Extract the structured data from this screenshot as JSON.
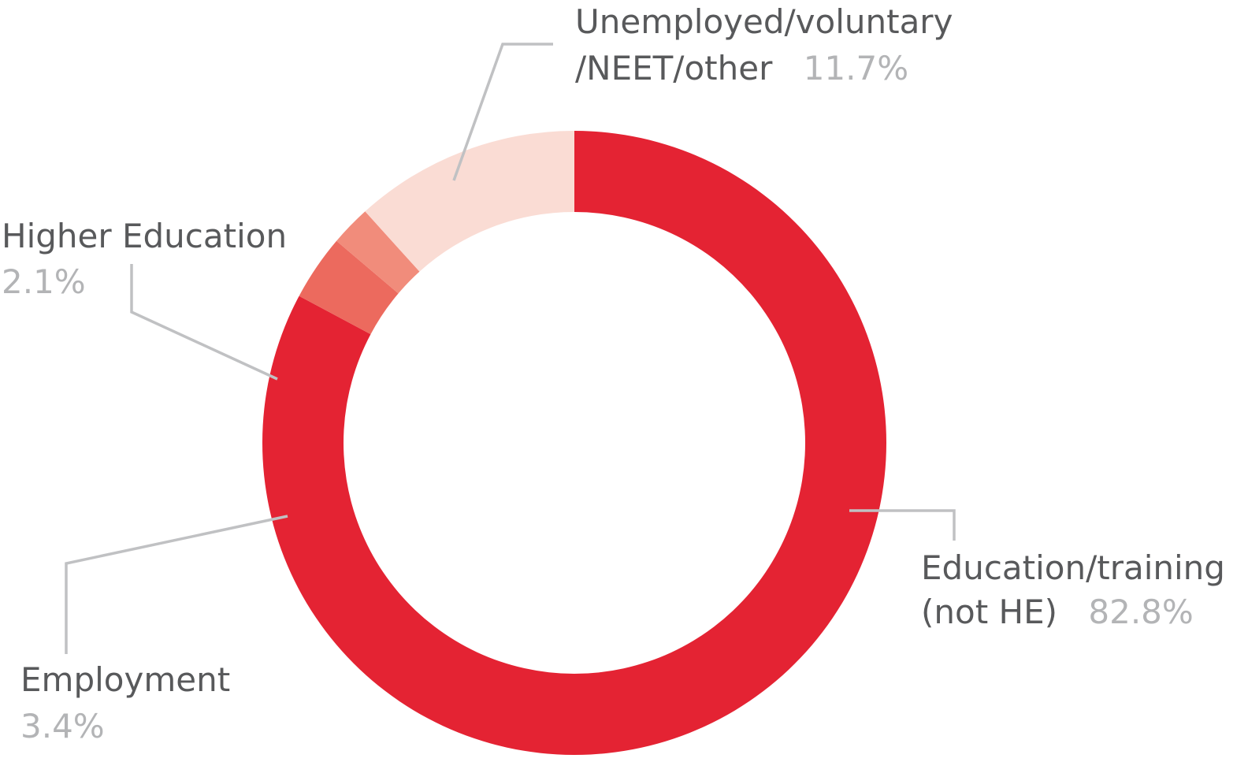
{
  "chart_data": {
    "type": "pie",
    "donut": true,
    "slices": [
      {
        "label_lines": [
          "Education/training",
          "(not HE)"
        ],
        "value_text": "82.8%",
        "value": 82.8,
        "color": "#e42333"
      },
      {
        "label_lines": [
          "Employment"
        ],
        "value_text": "3.4%",
        "value": 3.4,
        "color": "#ec6a5e"
      },
      {
        "label_lines": [
          "Higher Education"
        ],
        "value_text": "2.1%",
        "value": 2.1,
        "color": "#f18c7b"
      },
      {
        "label_lines": [
          "Unemployed/voluntary",
          "/NEET/other"
        ],
        "value_text": "11.7%",
        "value": 11.7,
        "color": "#fadcd4"
      }
    ],
    "legend": "none",
    "leader_line_color": "#c0c1c3"
  }
}
